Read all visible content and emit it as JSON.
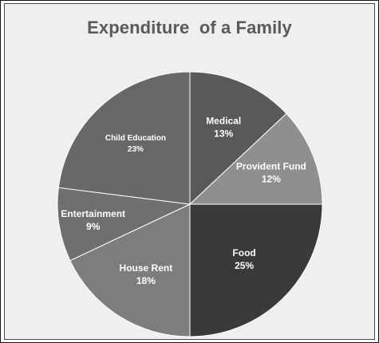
{
  "chart_data": {
    "type": "pie",
    "title": "Expenditure  of a Family",
    "categories": [
      "Medical",
      "Provident Fund",
      "Food",
      "House Rent",
      "Entertainment",
      "Child Education"
    ],
    "values": [
      13,
      12,
      25,
      18,
      9,
      23
    ],
    "value_labels": [
      "13%",
      "12%",
      "25%",
      "18%",
      "9%",
      "23%"
    ],
    "colors": [
      "#595959",
      "#8f8f8f",
      "#3a3a3a",
      "#7d7d7d",
      "#6f6f6f",
      "#686868"
    ],
    "start_angle_deg": 0,
    "direction": "clockwise"
  }
}
